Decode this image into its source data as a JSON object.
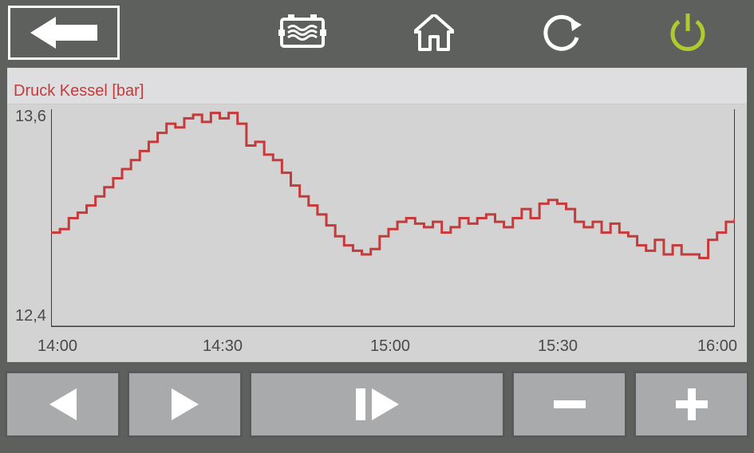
{
  "chart": {
    "type": "line",
    "title": "Druck Kessel [bar]",
    "title_color": "#c63a3a",
    "title_fontsize": 20,
    "line_color": "#c63a3a",
    "line_width": 3,
    "background_color": "#d3d3d4",
    "header_background": "#dedee0",
    "axis_color": "#3a3a3a",
    "tick_fontsize": 20,
    "tick_color": "#4a4a4a",
    "ylim": [
      12.4,
      13.6
    ],
    "yticks": [
      12.4,
      13.6
    ],
    "ytick_labels": [
      "12,4",
      "13,6"
    ],
    "xlim": [
      14.0,
      16.0
    ],
    "xticks": [
      14.0,
      14.5,
      15.0,
      15.5,
      16.0
    ],
    "xtick_labels": [
      "14:00",
      "14:30",
      "15:00",
      "15:30",
      "16:00"
    ],
    "values": [
      12.92,
      12.94,
      13.0,
      13.03,
      13.07,
      13.12,
      13.17,
      13.22,
      13.27,
      13.32,
      13.37,
      13.42,
      13.47,
      13.52,
      13.5,
      13.55,
      13.57,
      13.53,
      13.58,
      13.55,
      13.58,
      13.52,
      13.4,
      13.42,
      13.35,
      13.32,
      13.25,
      13.18,
      13.12,
      13.07,
      13.02,
      12.96,
      12.9,
      12.85,
      12.82,
      12.8,
      12.83,
      12.9,
      12.94,
      12.98,
      13.0,
      12.97,
      12.95,
      12.98,
      12.92,
      12.95,
      13.0,
      12.97,
      13.0,
      13.02,
      12.98,
      12.95,
      13.0,
      13.05,
      13.0,
      13.08,
      13.1,
      13.08,
      13.05,
      12.98,
      12.95,
      12.98,
      12.92,
      12.97,
      12.92,
      12.9,
      12.85,
      12.82,
      12.88,
      12.8,
      12.85,
      12.8,
      12.8,
      12.78,
      12.88,
      12.92,
      12.98,
      13.0
    ]
  },
  "controls": {
    "step_back": "step-back",
    "step_fwd": "step-forward",
    "play_pause": "play-pause",
    "zoom_out": "zoom-out",
    "zoom_in": "zoom-in"
  },
  "colors": {
    "frame": "#5d605c",
    "button_fill": "#a9aaab",
    "button_border": "#58595a",
    "back_border": "#ffffff",
    "icon_white": "#ffffff",
    "icon_power": "#afc92f"
  }
}
